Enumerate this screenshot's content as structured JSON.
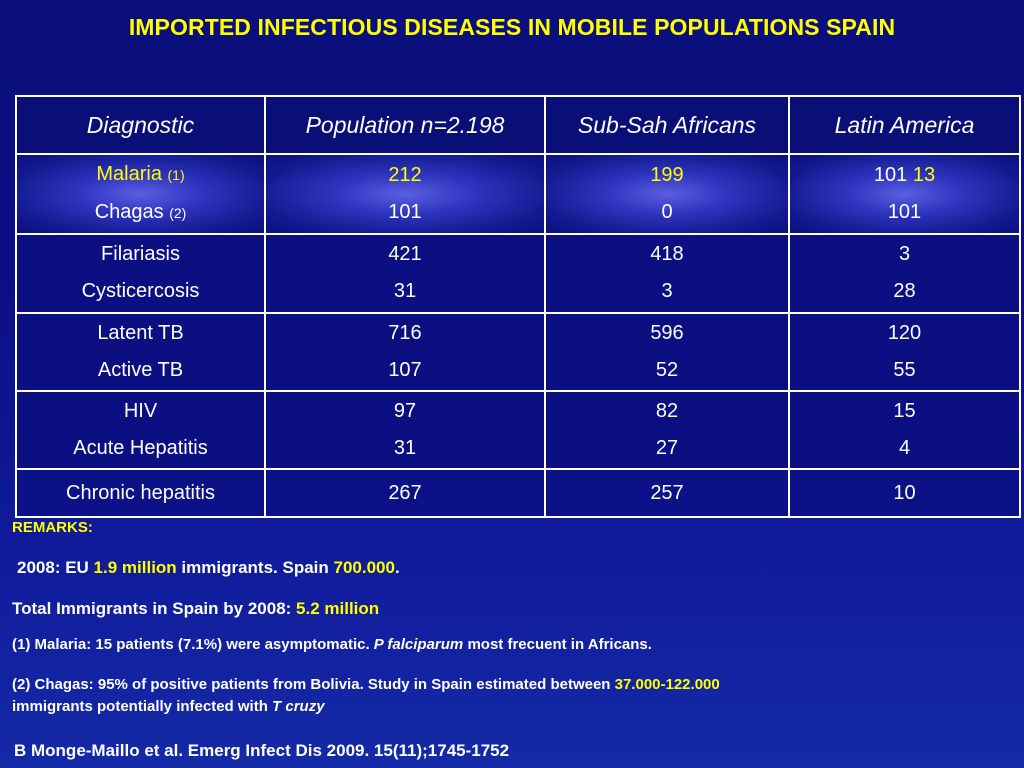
{
  "title": "IMPORTED INFECTIOUS DISEASES IN MOBILE POPULATIONS SPAIN",
  "colors": {
    "accent": "#ffff00",
    "background": "#0b0e86",
    "text": "#ffffff"
  },
  "table": {
    "headers": [
      "Diagnostic",
      "Population n=2.198",
      "Sub-Sah Africans",
      "Latin America"
    ],
    "rows": [
      {
        "diag1": "Malaria",
        "diag1_note": "(1)",
        "diag2": "Chagas",
        "diag2_note": "(2)",
        "pop1": "212",
        "pop2": "101",
        "af1": "199",
        "af2": "0",
        "la1a": "101",
        "la1b": "13",
        "la2": "101"
      },
      {
        "diag1": "Filariasis",
        "diag2": "Cysticercosis",
        "pop1": "421",
        "pop2": "31",
        "af1": "418",
        "af2": "3",
        "la1": "3",
        "la2": "28"
      },
      {
        "diag1": "Latent TB",
        "diag2": "Active TB",
        "pop1": "716",
        "pop2": "107",
        "af1": "596",
        "af2": "52",
        "la1": "120",
        "la2": "55"
      },
      {
        "diag1": "HIV",
        "diag2": "Acute Hepatitis",
        "pop1": "97",
        "pop2": "31",
        "af1": "82",
        "af2": "27",
        "la1": "15",
        "la2": "4"
      },
      {
        "diag1": "Chronic hepatitis",
        "pop1": "267",
        "af1": "257",
        "la1": "10"
      }
    ]
  },
  "remarks": {
    "heading": "REMARKS:",
    "line1": {
      "a": "2008: EU ",
      "b": "1.9 million",
      "c": " immigrants. Spain ",
      "d": "700.000",
      "e": "."
    },
    "line2": {
      "a": "Total Immigrants in Spain by 2008: ",
      "b": "5.2 million"
    },
    "line3": {
      "a": "(1) Malaria: 15 patients (7.1%) were asymptomatic. ",
      "b": "P falciparum",
      "c": " most frecuent in Africans."
    },
    "line4": {
      "a": "(2) Chagas: 95% of positive patients from Bolivia. Study in Spain estimated between ",
      "b": "37.000-122.000",
      "c": " immigrants potentially infected with ",
      "d": "T cruzy"
    },
    "citation": "B Monge-Maillo et al. Emerg Infect Dis 2009. 15(11);1745-1752"
  }
}
